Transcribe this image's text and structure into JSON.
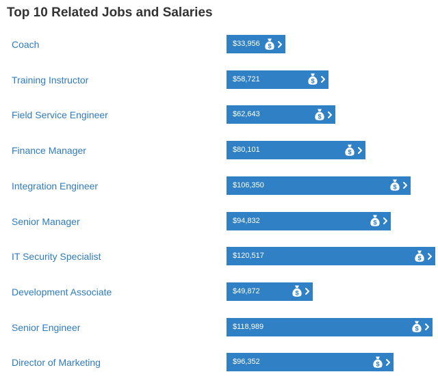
{
  "page": {
    "title": "Top 10 Related Jobs and Salaries"
  },
  "chart_data": {
    "type": "bar",
    "orientation": "horizontal",
    "title": "Top 10 Related Jobs and Salaries",
    "categories": [
      "Coach",
      "Training Instructor",
      "Field Service Engineer",
      "Finance Manager",
      "Integration Engineer",
      "Senior Manager",
      "IT Security Specialist",
      "Development Associate",
      "Senior Engineer",
      "Director of Marketing"
    ],
    "values": [
      33956,
      58721,
      62643,
      80101,
      106350,
      94832,
      120517,
      49872,
      118989,
      96352
    ],
    "value_labels": [
      "$33,956",
      "$58,721",
      "$62,643",
      "$80,101",
      "$106,350",
      "$94,832",
      "$120,517",
      "$49,872",
      "$118,989",
      "$96,352"
    ],
    "bar_color": "#2f80c4",
    "label_color": "#2f7bbf",
    "icons": [
      "money-bag-icon",
      "chevron-right-icon"
    ]
  }
}
